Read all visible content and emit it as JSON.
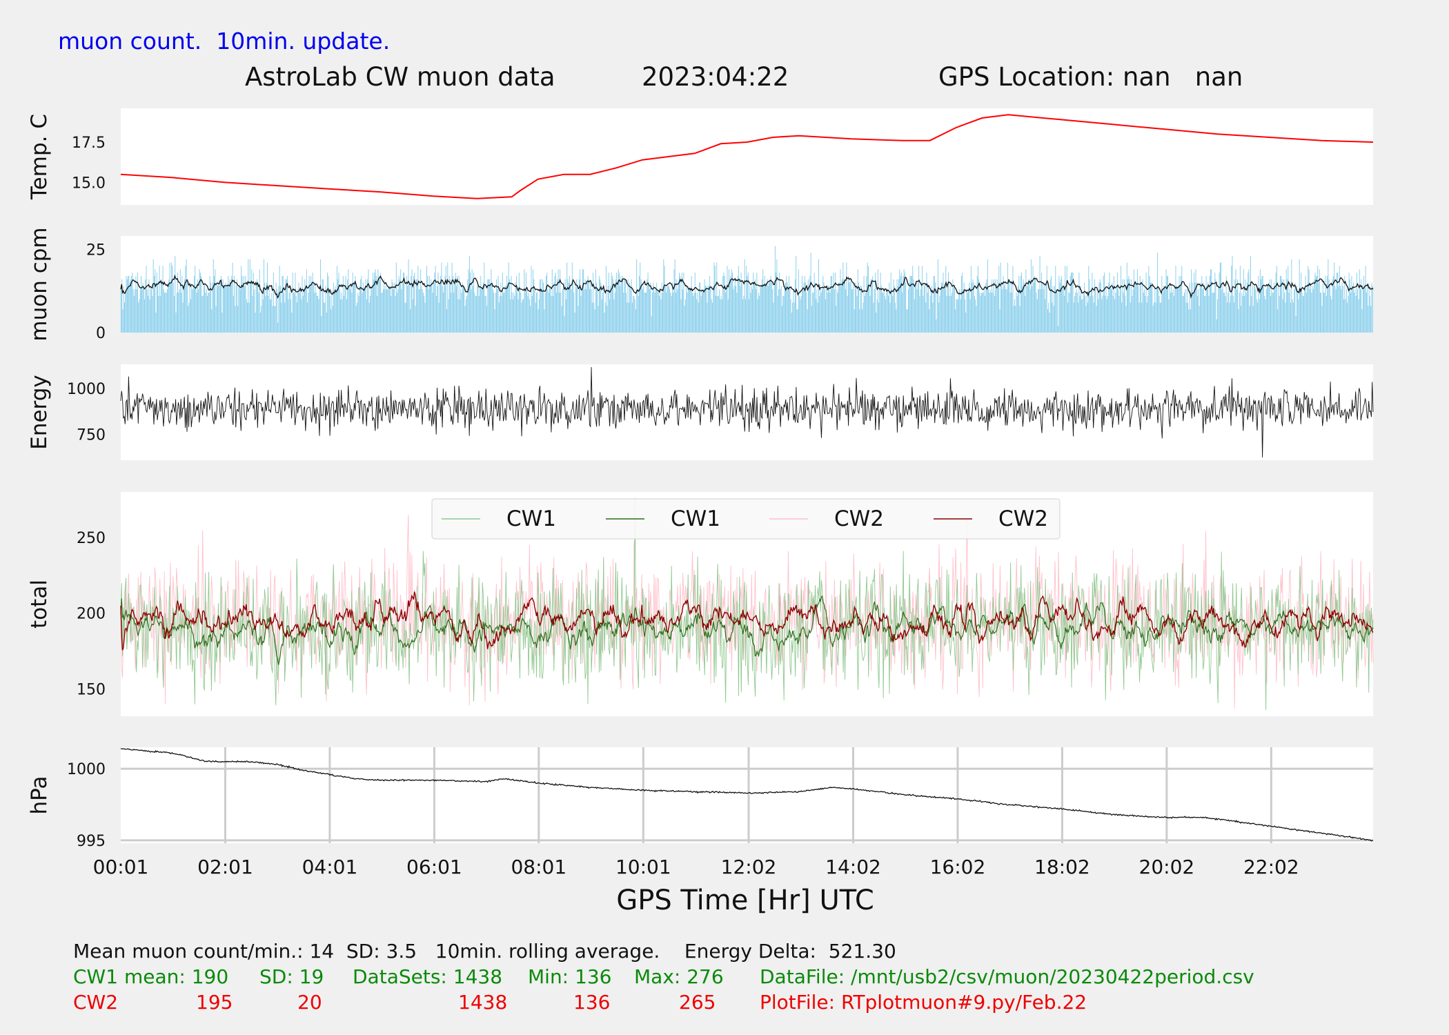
{
  "header": {
    "note": "muon count.  10min. update.",
    "title": "AstroLab CW muon data",
    "date": "2023:04:22",
    "gps": "GPS Location: nan   nan"
  },
  "footer": {
    "stats_line": "Mean muon count/min.: 14  SD: 3.5   10min. rolling average.    Energy Delta:  521.30",
    "cw1": {
      "label": "CW1 mean: 190",
      "sd": "SD: 19",
      "datasets": "DataSets: 1438",
      "min": "Min: 136",
      "max": "Max: 276",
      "file": "DataFile: /mnt/usb2/csv/muon/20230422period.csv"
    },
    "cw2": {
      "label": "CW2",
      "mean": "195",
      "sd": "20",
      "datasets": "1438",
      "min": "136",
      "max": "265",
      "file": "PlotFile: RTplotmuon#9.py/Feb.22"
    }
  },
  "colors": {
    "temp": "#ff0000",
    "muon_bars": "#87ceeb",
    "muon_avg": "#111111",
    "energy": "#111111",
    "cw1_raw": "#90c890",
    "cw1_avg": "#2e6b1a",
    "cw2_raw": "#ffc0cb",
    "cw2_avg": "#8b0000",
    "pressure": "#111111",
    "grid": "#cccccc"
  },
  "chart_data": [
    {
      "type": "line",
      "name": "temperature",
      "ylabel": "Temp. C",
      "yticks": [
        15.0,
        17.5
      ],
      "ylim": [
        13.6,
        19.6
      ],
      "x": [
        "00:01",
        "01:00",
        "02:00",
        "03:00",
        "04:00",
        "05:00",
        "06:00",
        "06:50",
        "07:30",
        "07:40",
        "08:00",
        "08:30",
        "09:00",
        "09:30",
        "10:00",
        "11:00",
        "11:30",
        "12:00",
        "12:30",
        "13:00",
        "14:00",
        "15:00",
        "15:30",
        "16:00",
        "16:30",
        "17:00",
        "18:00",
        "19:00",
        "20:00",
        "21:00",
        "22:00",
        "23:00",
        "23:59"
      ],
      "y": [
        15.5,
        15.3,
        15.0,
        14.8,
        14.6,
        14.4,
        14.15,
        14.0,
        14.1,
        14.5,
        15.2,
        15.5,
        15.5,
        15.9,
        16.4,
        16.8,
        17.4,
        17.5,
        17.8,
        17.9,
        17.7,
        17.6,
        17.6,
        18.4,
        19.0,
        19.2,
        18.9,
        18.6,
        18.3,
        18.0,
        17.8,
        17.6,
        17.5
      ]
    },
    {
      "type": "bar",
      "name": "muon counts per minute",
      "ylabel": "muon cpm",
      "yticks": [
        0,
        25
      ],
      "ylim": [
        0,
        29
      ],
      "points": 1438,
      "mean": 14,
      "sd": 3.5,
      "peak": 26,
      "rolling_average": "10min."
    },
    {
      "type": "line",
      "name": "energy",
      "ylabel": "Energy",
      "yticks": [
        750,
        1000
      ],
      "ylim": [
        610,
        1130
      ],
      "mean": 890,
      "spread": 55,
      "max": 1115,
      "min": 625
    },
    {
      "type": "line",
      "name": "total counts",
      "ylabel": "total",
      "yticks": [
        150,
        200,
        250
      ],
      "ylim": [
        132,
        280
      ],
      "legend": [
        "CW1",
        "CW1",
        "CW2",
        "CW2"
      ],
      "legend_position": "top-center",
      "series": [
        {
          "legend": "CW1",
          "style": "raw",
          "mean": 190,
          "sd": 19,
          "min": 136,
          "max": 276
        },
        {
          "legend": "CW1",
          "style": "10min. rolling average",
          "mean": 190
        },
        {
          "legend": "CW2",
          "style": "raw",
          "mean": 195,
          "sd": 20,
          "min": 136,
          "max": 265
        },
        {
          "legend": "CW2",
          "style": "10min. rolling average",
          "mean": 195
        }
      ]
    },
    {
      "type": "line",
      "name": "pressure",
      "ylabel": "hPa",
      "yticks": [
        995,
        1000
      ],
      "ylim": [
        994.8,
        1001.5
      ],
      "grid": true,
      "x": [
        "00:01",
        "01:00",
        "01:40",
        "02:30",
        "03:00",
        "03:30",
        "04:00",
        "04:30",
        "05:00",
        "06:00",
        "07:00",
        "07:20",
        "08:00",
        "09:00",
        "10:00",
        "11:00",
        "12:00",
        "13:00",
        "13:40",
        "14:00",
        "15:00",
        "16:00",
        "17:00",
        "18:00",
        "19:00",
        "20:00",
        "20:40",
        "21:00",
        "22:00",
        "23:00",
        "23:59"
      ],
      "y": [
        1001.4,
        1001.1,
        1000.5,
        1000.5,
        1000.3,
        999.9,
        999.6,
        999.3,
        999.2,
        999.2,
        999.1,
        999.3,
        999.0,
        998.7,
        998.5,
        998.4,
        998.3,
        998.4,
        998.7,
        998.6,
        998.2,
        997.9,
        997.5,
        997.2,
        996.8,
        996.6,
        996.6,
        996.5,
        996.0,
        995.5,
        995.0
      ]
    }
  ],
  "x_axis": {
    "label": "GPS Time  [Hr] UTC",
    "ticks": [
      "00:01",
      "02:01",
      "04:01",
      "06:01",
      "08:01",
      "10:01",
      "12:02",
      "14:02",
      "16:02",
      "18:02",
      "20:02",
      "22:02"
    ]
  }
}
